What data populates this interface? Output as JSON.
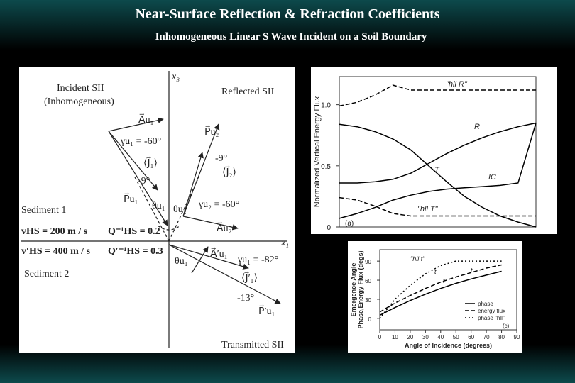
{
  "header": {
    "title": "Near-Surface Reflection & Refraction Coefficients",
    "subtitle": "Inhomogeneous Linear S Wave Incident on a Soil Boundary"
  },
  "diagram": {
    "labels": [
      "x₃",
      "Incident SII",
      "(Inhomogeneous)",
      "Reflected SII",
      "A⃗u₁",
      "γu₁ = -60°",
      "⟨J⃗₁⟩",
      "-9°",
      "P⃗u₁",
      "θu₁",
      "θu₂",
      "P⃗u₂",
      "-9°",
      "⟨J⃗₂⟩",
      "γu₂ = -60°",
      "A⃗u₂",
      "Sediment 1",
      "vHS = 200 m / s",
      "Q⁻¹HS = 0.2",
      "v′HS = 400 m / s",
      "Q′⁻¹HS = 0.3",
      "Sediment 2",
      "x₁",
      "θu₁",
      "A⃗′u₁",
      "γu₁ = -82°",
      "⟨J⃗′₁⟩",
      "-13°",
      "P⃗′u₁",
      "Transmitted SII"
    ]
  },
  "chart_data": [
    {
      "type": "line",
      "ylabel": "Normalized Vertical Energy Flux",
      "panel": "(a)",
      "categories": [
        null,
        null,
        null,
        null,
        null,
        null,
        null,
        null,
        null,
        null,
        null,
        null
      ],
      "ylim": [
        0,
        1.23
      ],
      "yticks": [
        0,
        0.5,
        {
          "value": 1,
          "label": "1.0"
        }
      ],
      "series": [
        {
          "name": "R",
          "color": "#000000",
          "line_style": "solid",
          "values": [
            0.36,
            0.36,
            0.37,
            0.39,
            0.44,
            0.52,
            0.6,
            0.67,
            0.73,
            0.78,
            0.82,
            0.85
          ]
        },
        {
          "name": "T",
          "color": "#000000",
          "line_style": "solid",
          "values": [
            0.84,
            0.82,
            0.78,
            0.72,
            0.63,
            0.5,
            0.37,
            0.25,
            0.16,
            0.09,
            0.04,
            0.0
          ]
        },
        {
          "name": "IC",
          "color": "#000000",
          "line_style": "solid",
          "values": [
            0.07,
            0.11,
            0.16,
            0.22,
            0.26,
            0.29,
            0.31,
            0.32,
            0.33,
            0.34,
            0.36,
            0.85
          ]
        },
        {
          "name": "\"hll R\"",
          "color": "#000000",
          "line_style": "dashed",
          "values": [
            0.99,
            1.02,
            1.08,
            1.16,
            1.12,
            1.12,
            1.12,
            1.12,
            1.12,
            1.12,
            1.12,
            1.12
          ]
        },
        {
          "name": "\"hll T\"",
          "color": "#000000",
          "line_style": "dashed",
          "values": [
            0.24,
            0.22,
            0.17,
            0.11,
            0.09,
            0.09,
            0.09,
            0.09,
            0.09,
            0.09,
            0.09,
            0.09
          ]
        }
      ]
    },
    {
      "type": "line",
      "xlabel": "Angle of Incidence (degrees)",
      "ylabel": [
        "Emergence Angle",
        "Phase,Energy Flux (degs)"
      ],
      "panel": "(c)",
      "x": [
        0,
        10,
        20,
        30,
        40,
        50,
        60,
        70,
        80
      ],
      "xlim": [
        0,
        90
      ],
      "xticks": [
        0,
        10,
        20,
        30,
        40,
        50,
        60,
        70,
        80,
        90
      ],
      "ylim": [
        -18,
        108
      ],
      "yticks": [
        0,
        30,
        60,
        90
      ],
      "annotations": [
        "\"hll t\"",
        "t",
        "t",
        "t"
      ],
      "series": [
        {
          "name": "phase",
          "color": "#000000",
          "line_style": "solid",
          "values": [
            5,
            17,
            28,
            38,
            47,
            55,
            62,
            68,
            74
          ]
        },
        {
          "name": "energy flux",
          "color": "#000000",
          "line_style": "dashed",
          "values": [
            10,
            24,
            36,
            47,
            57,
            65,
            72,
            79,
            84
          ]
        },
        {
          "name": "phase \"hll\"",
          "color": "#000000",
          "line_style": "dotted",
          "values": [
            0,
            30,
            52,
            70,
            83,
            90,
            90,
            90,
            90
          ]
        }
      ]
    }
  ]
}
